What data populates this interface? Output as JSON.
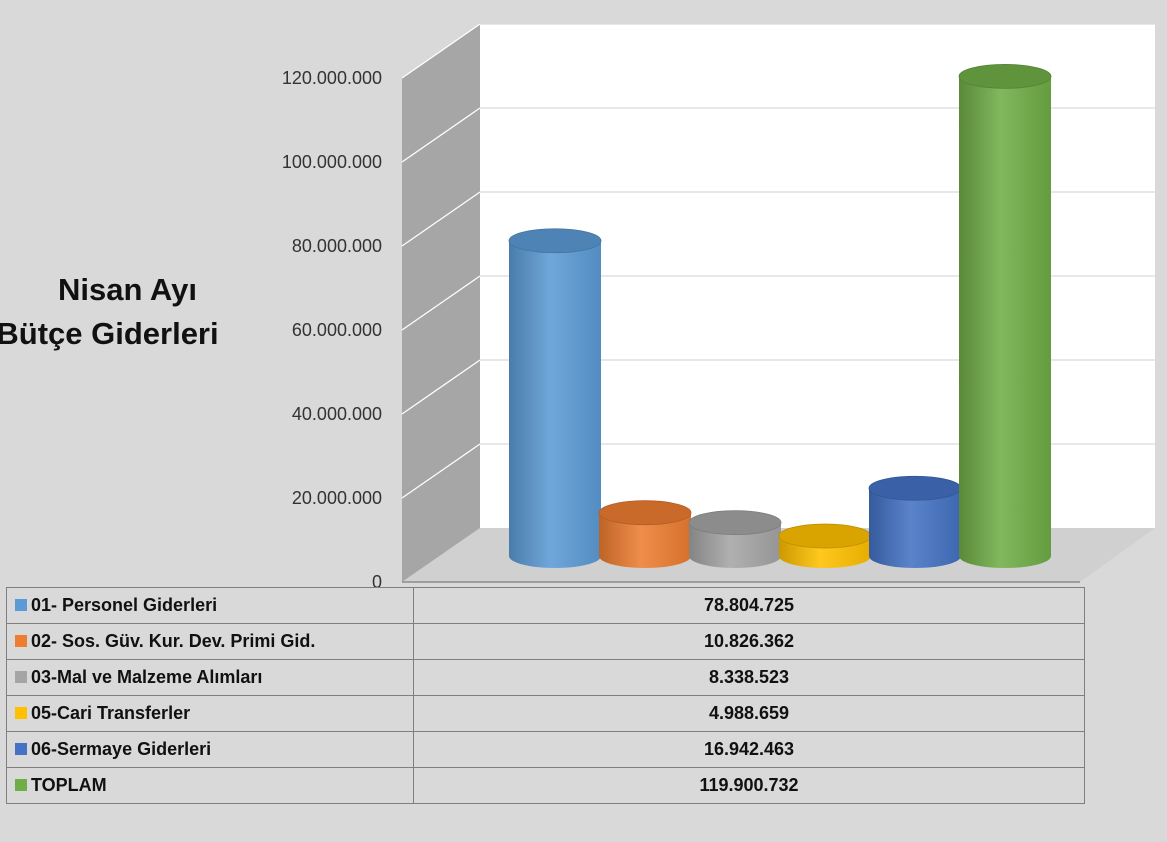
{
  "chart_data": {
    "type": "bar",
    "style": "3d-cylinder",
    "title": "Nisan Ayı Bütçe Giderleri",
    "title_lines": [
      "Nisan Ayı",
      "Bütçe Giderleri"
    ],
    "ylim": [
      0,
      120000000
    ],
    "y_ticks": [
      0,
      20000000,
      40000000,
      60000000,
      80000000,
      100000000,
      120000000
    ],
    "y_tick_labels": [
      "0",
      "20.000.000",
      "40.000.000",
      "60.000.000",
      "80.000.000",
      "100.000.000",
      "120.000.000"
    ],
    "grid": true,
    "legend": "data-table-below",
    "series": [
      {
        "name": "01- Personel Giderleri",
        "value": 78804725,
        "label": "78.804.725",
        "color": "#5b9bd5"
      },
      {
        "name": "02- Sos. Güv. Kur. Dev. Primi Gid.",
        "value": 10826362,
        "label": "10.826.362",
        "color": "#ed7d31"
      },
      {
        "name": "03-Mal ve Malzeme Alımları",
        "value": 8338523,
        "label": "8.338.523",
        "color": "#a5a5a5"
      },
      {
        "name": "05-Cari Transferler",
        "value": 4988659,
        "label": "4.988.659",
        "color": "#ffc000"
      },
      {
        "name": "06-Sermaye Giderleri",
        "value": 16942463,
        "label": "16.942.463",
        "color": "#4472c4"
      },
      {
        "name": "TOPLAM",
        "value": 119900732,
        "label": "119.900.732",
        "color": "#70ad47"
      }
    ]
  }
}
